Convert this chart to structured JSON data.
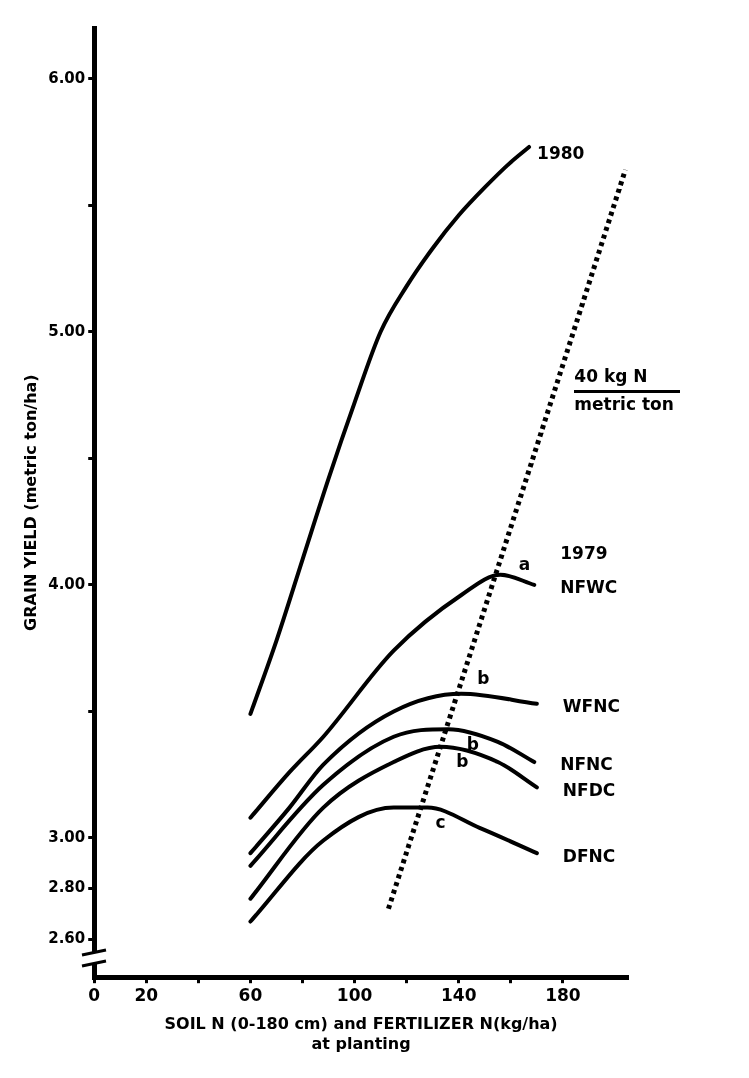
{
  "chart_data": {
    "type": "line",
    "xlabel": "SOIL N (0-180 cm) and FERTILIZER N(kg/ha)\nat planting",
    "ylabel": "GRAIN YIELD (metric ton/ha)",
    "xlim": [
      0,
      205
    ],
    "xticks": [
      0,
      20,
      {
        "value": 40,
        "label": null
      },
      60,
      {
        "value": 80,
        "label": null
      },
      100,
      {
        "value": 120,
        "label": null
      },
      140,
      {
        "value": 160,
        "label": null
      },
      180
    ],
    "ylim": [
      2.45,
      6.2
    ],
    "yticks": [
      {
        "value": 2.6,
        "label": "2.60"
      },
      {
        "value": 2.8,
        "label": "2.80"
      },
      {
        "value": 3.0,
        "label": "3.00"
      },
      {
        "value": 3.5,
        "label": null
      },
      {
        "value": 4.0,
        "label": "4.00"
      },
      {
        "value": 4.5,
        "label": null
      },
      {
        "value": 5.0,
        "label": "5.00"
      },
      {
        "value": 5.5,
        "label": null
      },
      {
        "value": 6.0,
        "label": "6.00"
      }
    ],
    "grid": false,
    "legend": false,
    "marker": "none",
    "series": [
      {
        "name": "1980",
        "type": "line",
        "color": "#000000",
        "line_style": "solid",
        "x": [
          60,
          70,
          80,
          90,
          100,
          110,
          120,
          130,
          140,
          150,
          160,
          167
        ],
        "values": [
          3.49,
          3.78,
          4.1,
          4.42,
          4.72,
          5.0,
          5.18,
          5.33,
          5.46,
          5.57,
          5.67,
          5.73
        ]
      },
      {
        "name": "NFWC",
        "type": "line",
        "color": "#000000",
        "line_style": "solid",
        "x": [
          60,
          75,
          88,
          115,
          141,
          156,
          169
        ],
        "values": [
          3.08,
          3.26,
          3.4,
          3.74,
          3.96,
          4.04,
          4.0
        ]
      },
      {
        "name": "WFNC",
        "type": "line",
        "color": "#000000",
        "line_style": "solid",
        "x": [
          60,
          75,
          88,
          115,
          141,
          170
        ],
        "values": [
          2.94,
          3.12,
          3.29,
          3.5,
          3.57,
          3.53
        ]
      },
      {
        "name": "NFNC",
        "type": "line",
        "color": "#000000",
        "line_style": "solid",
        "x": [
          60,
          88,
          115,
          136,
          155,
          169
        ],
        "values": [
          2.89,
          3.21,
          3.4,
          3.43,
          3.38,
          3.3
        ]
      },
      {
        "name": "NFDC",
        "type": "line",
        "color": "#000000",
        "line_style": "solid",
        "x": [
          60,
          88,
          115,
          133,
          155,
          170
        ],
        "values": [
          2.76,
          3.12,
          3.3,
          3.36,
          3.3,
          3.2
        ]
      },
      {
        "name": "DFNC",
        "type": "line",
        "color": "#000000",
        "line_style": "solid",
        "x": [
          60,
          88,
          115,
          128,
          148,
          170
        ],
        "values": [
          2.67,
          2.99,
          3.12,
          3.12,
          3.04,
          2.94
        ]
      },
      {
        "name": "40 kg N\nmetric ton",
        "type": "line",
        "color": "#000000",
        "line_style": "dotted",
        "x": [
          113,
          204
        ],
        "values": [
          2.72,
          5.64
        ]
      }
    ],
    "annotations": [
      "1979",
      {
        "text": "a",
        "x": 160,
        "y": 4.02
      },
      {
        "text": "b",
        "x": 144,
        "y": 3.57
      },
      {
        "text": "b",
        "x": 140,
        "y": 3.43
      },
      {
        "text": "b",
        "x": 136,
        "y": 3.36
      },
      {
        "text": "c",
        "x": 128,
        "y": 3.12
      }
    ]
  }
}
